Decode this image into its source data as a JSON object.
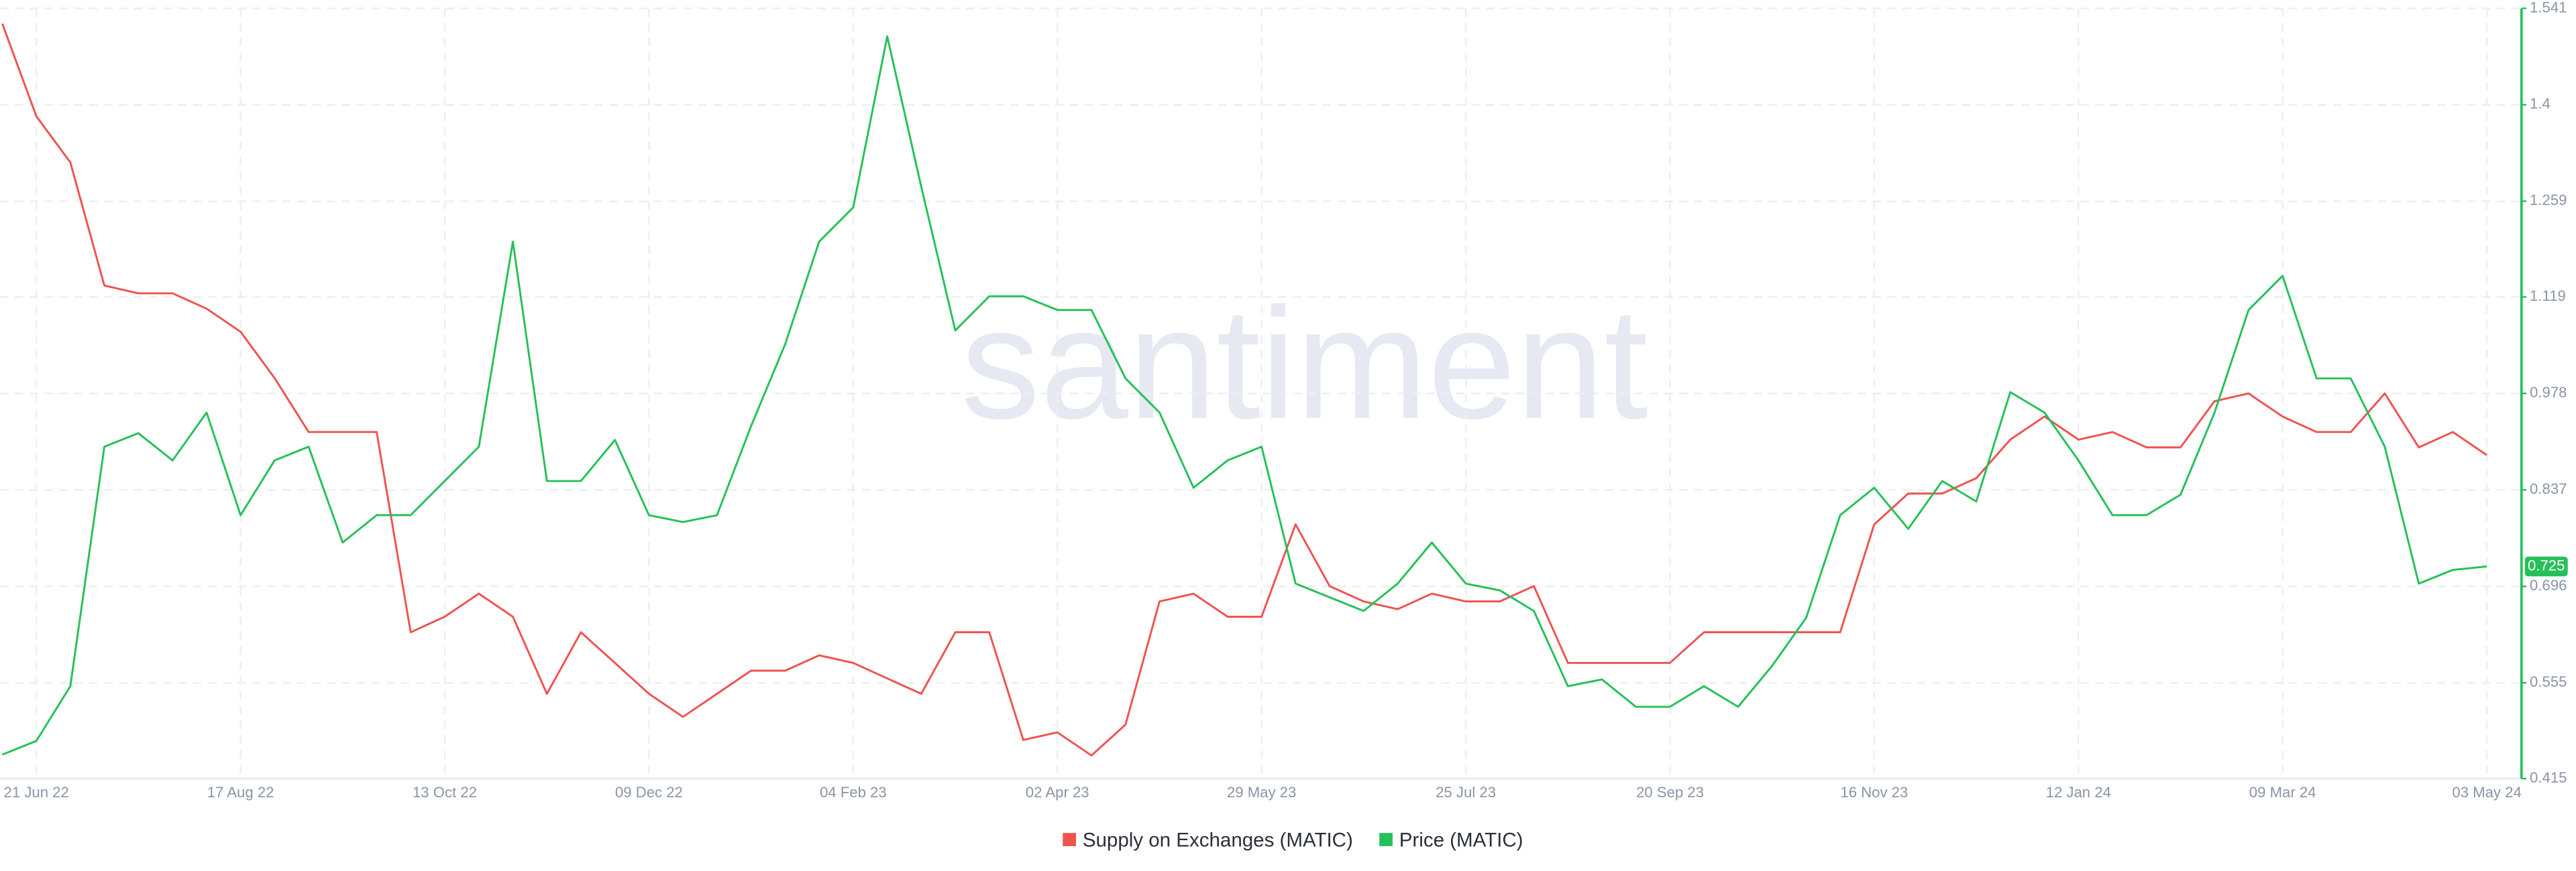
{
  "chart_data": {
    "type": "line",
    "watermark": "santiment",
    "categories": [
      null,
      "21 Jun 22",
      null,
      null,
      null,
      null,
      null,
      "17 Aug 22",
      null,
      null,
      null,
      null,
      null,
      "13 Oct 22",
      null,
      null,
      null,
      null,
      null,
      "09 Dec 22",
      null,
      null,
      null,
      null,
      null,
      "04 Feb 23",
      null,
      null,
      null,
      null,
      null,
      "02 Apr 23",
      null,
      null,
      null,
      null,
      null,
      "29 May 23",
      null,
      null,
      null,
      null,
      null,
      "25 Jul 23",
      null,
      null,
      null,
      null,
      null,
      "20 Sep 23",
      null,
      null,
      null,
      null,
      null,
      "16 Nov 23",
      null,
      null,
      null,
      null,
      null,
      "12 Jan 24",
      null,
      null,
      null,
      null,
      null,
      "09 Mar 24",
      null,
      null,
      null,
      null,
      null,
      "03 May 24"
    ],
    "series": [
      {
        "name": "Supply on Exchanges (MATIC)",
        "color": "#ef5350",
        "axis": "y",
        "values": [
          98,
          86,
          80,
          64,
          63,
          63,
          61,
          58,
          52,
          45,
          45,
          45,
          19,
          21,
          24,
          21,
          11,
          19,
          15,
          11,
          8,
          11,
          14,
          14,
          16,
          15,
          13,
          11,
          19,
          19,
          5,
          6,
          3,
          7,
          23,
          24,
          21,
          21,
          33,
          25,
          23,
          22,
          24,
          23,
          23,
          25,
          15,
          15,
          15,
          15,
          19,
          19,
          19,
          19,
          19,
          33,
          37,
          37,
          39,
          44,
          47,
          44,
          45,
          43,
          43,
          49,
          50,
          47,
          45,
          45,
          50,
          43,
          45,
          42
        ]
      },
      {
        "name": "Price (MATIC)",
        "color": "#26c05a",
        "axis": "y2",
        "values": [
          0.45,
          0.47,
          0.55,
          0.9,
          0.92,
          0.88,
          0.95,
          0.8,
          0.88,
          0.9,
          0.76,
          0.8,
          0.8,
          0.85,
          0.9,
          1.2,
          0.85,
          0.85,
          0.91,
          0.8,
          0.79,
          0.8,
          0.93,
          1.05,
          1.2,
          1.25,
          1.5,
          1.28,
          1.07,
          1.12,
          1.12,
          1.1,
          1.1,
          1.0,
          0.95,
          0.84,
          0.88,
          0.9,
          0.7,
          0.68,
          0.66,
          0.7,
          0.76,
          0.7,
          0.69,
          0.66,
          0.55,
          0.56,
          0.52,
          0.52,
          0.55,
          0.52,
          0.58,
          0.65,
          0.8,
          0.84,
          0.78,
          0.85,
          0.82,
          0.98,
          0.95,
          0.88,
          0.8,
          0.8,
          0.83,
          0.95,
          1.1,
          1.15,
          1.0,
          1.0,
          0.9,
          0.7,
          0.72,
          0.725
        ]
      }
    ],
    "ylim": [
      0,
      100
    ],
    "y2lim": [
      0.415,
      1.541
    ],
    "y2ticks": [
      0.415,
      0.555,
      0.696,
      0.837,
      0.978,
      1.119,
      1.259,
      1.4,
      1.541
    ],
    "grid": true,
    "legend": "bottom"
  }
}
